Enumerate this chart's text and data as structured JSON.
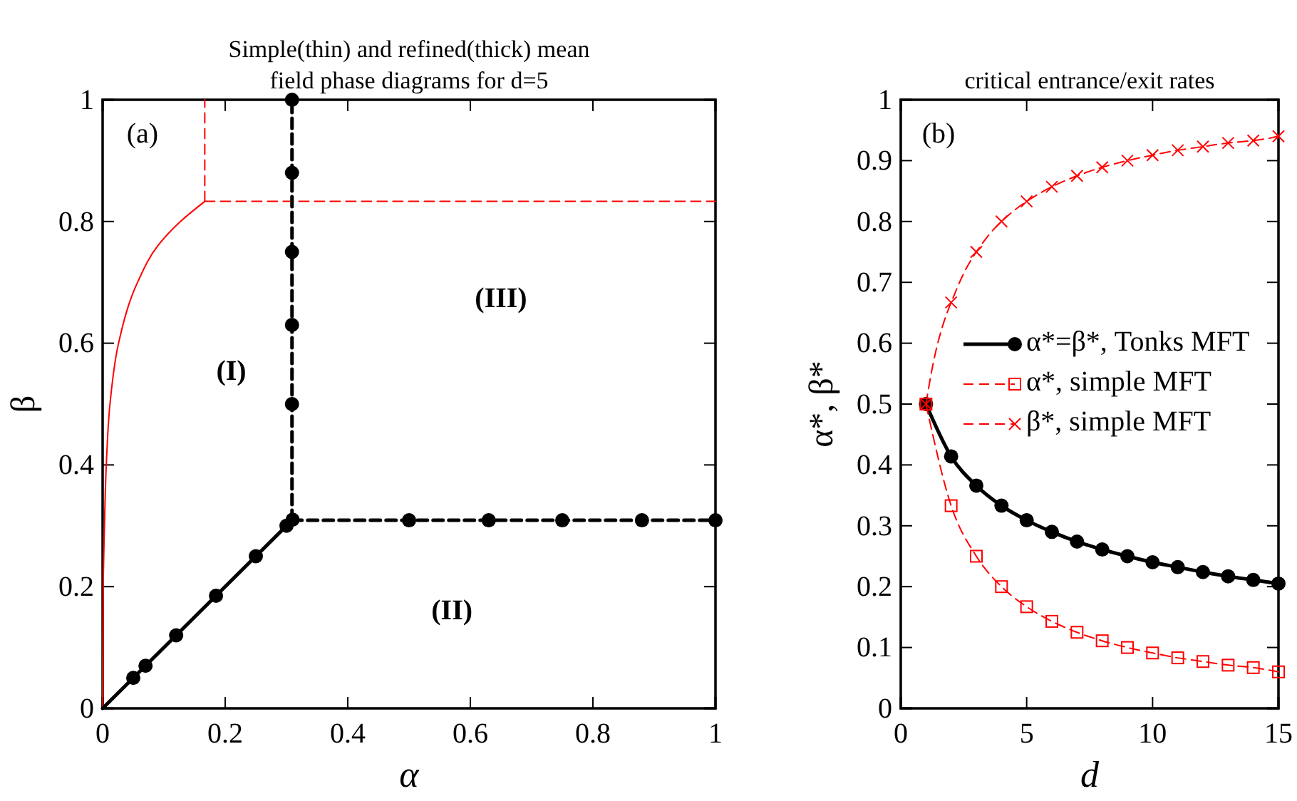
{
  "chart_data": [
    {
      "type": "line",
      "title": "Simple(thin) and refined(thick) mean field phase diagrams for d=5",
      "xlabel": "α",
      "ylabel": "β",
      "xlim": [
        0,
        1
      ],
      "ylim": [
        0,
        1
      ],
      "xticks": [
        0,
        0.2,
        0.4,
        0.6,
        0.8,
        1
      ],
      "yticks": [
        0,
        0.2,
        0.4,
        0.6,
        0.8,
        1
      ],
      "grid": false,
      "legend": false,
      "annotations": [
        "(a)",
        "(I)",
        "(II)",
        "(III)"
      ],
      "series": [
        {
          "color": "#ff0000",
          "line_style": "solid",
          "marker": "none",
          "x": [
            0,
            0.001,
            0.003,
            0.006,
            0.012,
            0.026,
            0.057,
            0.09,
            0.127,
            0.1667
          ],
          "values": [
            0,
            0.2,
            0.3,
            0.4,
            0.5,
            0.6,
            0.7,
            0.76,
            0.8,
            0.833
          ]
        },
        {
          "color": "#ff0000",
          "line_style": "dashed",
          "marker": "none",
          "x": [
            0.1667,
            0.1667
          ],
          "values": [
            0.833,
            1
          ]
        },
        {
          "color": "#ff0000",
          "line_style": "dashed",
          "marker": "none",
          "x": [
            0.1667,
            1
          ],
          "values": [
            0.833,
            0.833
          ]
        },
        {
          "color": "#000000",
          "line_style": "solid",
          "marker": "none",
          "x": [
            0,
            0.309
          ],
          "values": [
            0,
            0.309
          ]
        },
        {
          "color": "#000000",
          "line_style": "dashed",
          "marker": "none",
          "x": [
            0.309,
            0.309
          ],
          "values": [
            0.309,
            1
          ]
        },
        {
          "color": "#000000",
          "line_style": "dashed",
          "marker": "none",
          "x": [
            0.309,
            1
          ],
          "values": [
            0.309,
            0.309
          ]
        },
        {
          "type": "scatter",
          "color": "#000000",
          "marker": "circle",
          "x": [
            0.05,
            0.07,
            0.12,
            0.185,
            0.25,
            0.3,
            0.31,
            0.309,
            0.309,
            0.309,
            0.309,
            0.309,
            0.5,
            0.63,
            0.75,
            0.88,
            1
          ],
          "values": [
            0.05,
            0.07,
            0.12,
            0.185,
            0.25,
            0.3,
            0.31,
            0.5,
            0.63,
            0.75,
            0.88,
            1,
            0.309,
            0.309,
            0.309,
            0.309,
            0.309
          ]
        }
      ]
    },
    {
      "type": "line",
      "title": "critical entrance/exit rates",
      "xlabel": "d",
      "ylabel": "α*, β*",
      "xlim": [
        0,
        15
      ],
      "ylim": [
        0,
        1
      ],
      "xticks": [
        0,
        5,
        10,
        15
      ],
      "yticks": [
        0,
        0.1,
        0.2,
        0.3,
        0.4,
        0.5,
        0.6,
        0.7,
        0.8,
        0.9,
        1
      ],
      "grid": false,
      "legend": "right",
      "annotations": [
        "(b)"
      ],
      "x": [
        1,
        2,
        3,
        4,
        5,
        6,
        7,
        8,
        9,
        10,
        11,
        12,
        13,
        14,
        15
      ],
      "series": [
        {
          "name": "α*=β*, Tonks MFT",
          "color": "#000000",
          "line_style": "solid",
          "marker": "circle",
          "values": [
            0.5,
            0.414,
            0.366,
            0.333,
            0.309,
            0.29,
            0.274,
            0.261,
            0.25,
            0.24,
            0.232,
            0.224,
            0.217,
            0.211,
            0.205
          ]
        },
        {
          "name": "α*, simple MFT",
          "color": "#ff0000",
          "line_style": "dashed",
          "marker": "square",
          "values": [
            0.5,
            0.333,
            0.25,
            0.2,
            0.167,
            0.143,
            0.125,
            0.111,
            0.1,
            0.091,
            0.083,
            0.077,
            0.071,
            0.067,
            0.06
          ]
        },
        {
          "name": "β*, simple MFT",
          "color": "#ff0000",
          "line_style": "dashed",
          "marker": "cross",
          "values": [
            0.5,
            0.667,
            0.75,
            0.8,
            0.833,
            0.857,
            0.875,
            0.889,
            0.9,
            0.909,
            0.917,
            0.923,
            0.929,
            0.933,
            0.94
          ]
        }
      ]
    }
  ]
}
